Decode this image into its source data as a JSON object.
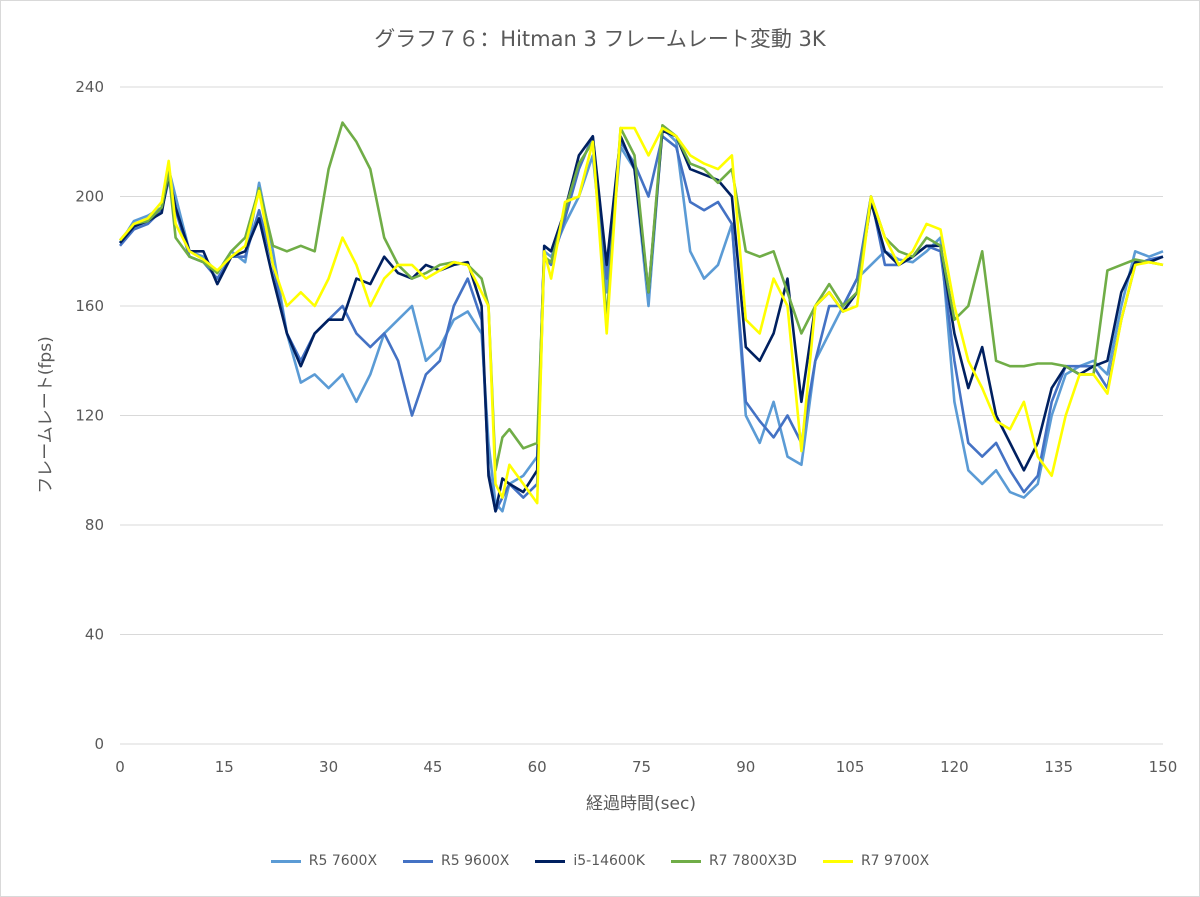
{
  "chart_data": {
    "type": "line",
    "title": "グラフ７６：Hitman 3 フレームレート変動 3K",
    "xlabel": "経過時間(sec)",
    "ylabel": "フレームレート(fps)",
    "xlim": [
      0,
      150
    ],
    "ylim": [
      0,
      240
    ],
    "x_ticks": [
      "0",
      "15",
      "30",
      "45",
      "60",
      "75",
      "90",
      "105",
      "120",
      "135",
      "150"
    ],
    "y_ticks": [
      "0",
      "40",
      "80",
      "120",
      "160",
      "200",
      "240"
    ],
    "grid": "horizontal",
    "legend_position": "bottom",
    "x": [
      0,
      2,
      4,
      6,
      7,
      8,
      10,
      12,
      14,
      16,
      18,
      20,
      22,
      24,
      26,
      28,
      30,
      32,
      34,
      36,
      38,
      40,
      42,
      44,
      46,
      48,
      50,
      52,
      53,
      54,
      55,
      56,
      58,
      60,
      61,
      62,
      64,
      66,
      68,
      70,
      72,
      74,
      76,
      78,
      80,
      82,
      84,
      86,
      88,
      90,
      92,
      94,
      96,
      98,
      100,
      102,
      104,
      106,
      108,
      110,
      112,
      114,
      116,
      118,
      120,
      122,
      124,
      126,
      128,
      130,
      132,
      134,
      136,
      138,
      140,
      142,
      144,
      146,
      148,
      150
    ],
    "series": [
      {
        "name": "R5 7600X",
        "color": "#5b9bd5",
        "values": [
          183,
          191,
          193,
          196,
          210,
          200,
          180,
          178,
          172,
          180,
          176,
          205,
          180,
          150,
          132,
          135,
          130,
          135,
          125,
          135,
          150,
          155,
          160,
          140,
          145,
          155,
          158,
          150,
          110,
          88,
          85,
          95,
          98,
          105,
          180,
          178,
          190,
          200,
          215,
          165,
          218,
          210,
          160,
          225,
          220,
          180,
          170,
          175,
          190,
          120,
          110,
          125,
          105,
          102,
          140,
          150,
          160,
          170,
          175,
          180,
          177,
          176,
          180,
          185,
          125,
          100,
          95,
          100,
          92,
          90,
          95,
          120,
          135,
          138,
          140,
          135,
          160,
          180,
          178,
          180
        ]
      },
      {
        "name": "R5 9600X",
        "color": "#4472c4",
        "values": [
          182,
          188,
          190,
          195,
          206,
          195,
          178,
          176,
          170,
          178,
          178,
          195,
          175,
          150,
          140,
          150,
          155,
          160,
          150,
          145,
          150,
          140,
          120,
          135,
          140,
          160,
          170,
          155,
          100,
          85,
          90,
          95,
          90,
          95,
          178,
          175,
          192,
          210,
          222,
          170,
          220,
          212,
          200,
          222,
          218,
          198,
          195,
          198,
          190,
          125,
          118,
          112,
          120,
          110,
          140,
          160,
          160,
          170,
          200,
          175,
          175,
          178,
          182,
          180,
          140,
          110,
          105,
          110,
          100,
          92,
          98,
          125,
          138,
          138,
          138,
          130,
          155,
          175,
          177,
          178
        ]
      },
      {
        "name": "i5-14600K",
        "color": "#002060",
        "values": [
          183,
          189,
          191,
          194,
          208,
          196,
          180,
          180,
          168,
          178,
          180,
          192,
          170,
          150,
          138,
          150,
          155,
          155,
          170,
          168,
          178,
          172,
          170,
          175,
          173,
          175,
          176,
          160,
          98,
          85,
          97,
          95,
          92,
          100,
          182,
          180,
          195,
          215,
          222,
          175,
          222,
          210,
          165,
          224,
          222,
          210,
          208,
          206,
          200,
          145,
          140,
          150,
          170,
          125,
          160,
          165,
          158,
          165,
          198,
          180,
          175,
          178,
          182,
          182,
          150,
          130,
          145,
          120,
          110,
          100,
          110,
          130,
          138,
          135,
          138,
          140,
          165,
          176,
          176,
          178
        ]
      },
      {
        "name": "R7 7800X3D",
        "color": "#70ad47",
        "values": [
          184,
          190,
          191,
          196,
          209,
          185,
          178,
          176,
          172,
          180,
          185,
          203,
          182,
          180,
          182,
          180,
          210,
          227,
          220,
          210,
          185,
          175,
          170,
          172,
          175,
          176,
          175,
          170,
          160,
          100,
          112,
          115,
          108,
          110,
          178,
          176,
          195,
          212,
          220,
          155,
          225,
          215,
          165,
          226,
          222,
          212,
          210,
          205,
          210,
          180,
          178,
          180,
          165,
          150,
          160,
          168,
          160,
          165,
          200,
          185,
          180,
          178,
          185,
          182,
          155,
          160,
          180,
          140,
          138,
          138,
          139,
          139,
          138,
          135,
          135,
          173,
          175,
          177,
          176,
          175
        ]
      },
      {
        "name": "R7 9700X",
        "color": "#ffff00",
        "values": [
          184,
          190,
          192,
          198,
          213,
          190,
          180,
          177,
          173,
          178,
          182,
          202,
          175,
          160,
          165,
          160,
          170,
          185,
          175,
          160,
          170,
          175,
          175,
          170,
          173,
          176,
          175,
          165,
          160,
          95,
          90,
          102,
          95,
          88,
          180,
          170,
          198,
          200,
          220,
          150,
          225,
          225,
          215,
          225,
          222,
          215,
          212,
          210,
          215,
          155,
          150,
          170,
          160,
          107,
          160,
          165,
          158,
          160,
          200,
          185,
          175,
          180,
          190,
          188,
          160,
          140,
          130,
          118,
          115,
          125,
          105,
          98,
          120,
          135,
          135,
          128,
          155,
          175,
          176,
          175
        ]
      }
    ]
  }
}
